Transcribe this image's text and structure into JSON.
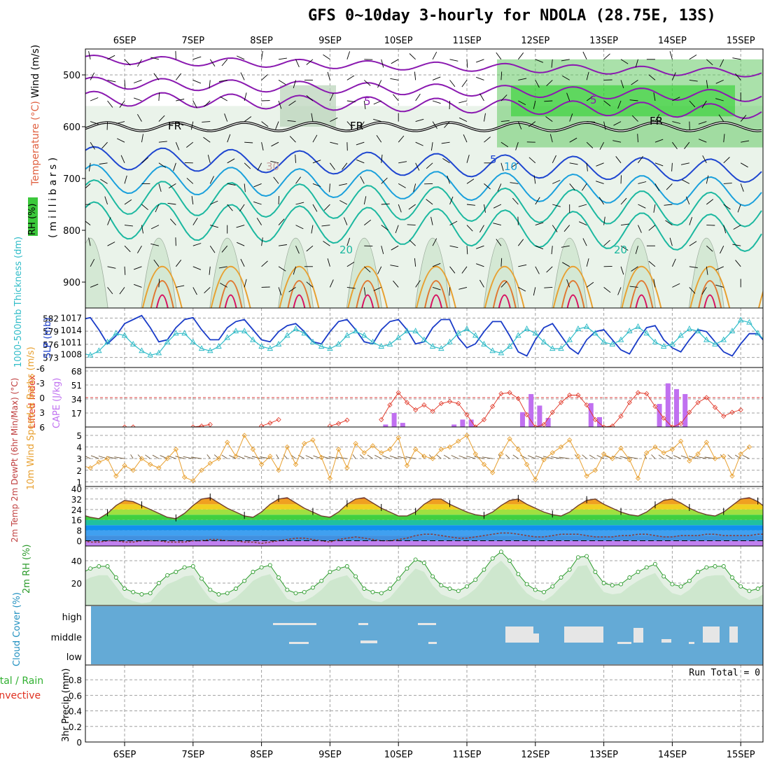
{
  "title": "GFS 0~10day 3-hourly for NDOLA (28.75E, 13S)",
  "x_ticks": [
    "6SEP",
    "7SEP",
    "8SEP",
    "9SEP",
    "10SEP",
    "11SEP",
    "12SEP",
    "13SEP",
    "14SEP",
    "15SEP"
  ],
  "colors": {
    "wind_barb": "#000000",
    "temp_purple": "#8a19b0",
    "temp_blue": "#1e46d0",
    "temp_cyan": "#1aa0dc",
    "temp_teal": "#1cb8a0",
    "temp_orange": "#e8a030",
    "temp_red": "#d81060",
    "rh_light": "#e8f2e8",
    "rh_green": "#3cc83c",
    "slp": "#1a3cc8",
    "thickness": "#30bcc8",
    "cape": "#c070f0",
    "lifted_index": "#e03020",
    "wind_speed": "#e8a030",
    "rh2m": "#2a9a2a",
    "cloud": "#64aad6",
    "cloud_clear": "#e6e6e6"
  },
  "chart_data": [
    {
      "panel": "upper_air",
      "type": "heatmap",
      "ylabel_rh": "RH (%)",
      "ylabel_temp": "Temperature (°C)",
      "ylabel_wind": "Wind (m/s)",
      "ylabel_p": "( m i l l i b a r s )",
      "y_ticks": [
        500,
        600,
        700,
        800,
        900
      ],
      "ylim": [
        950,
        450
      ],
      "contour_labels": [
        "5",
        "FR",
        "FR",
        "FR",
        "5",
        "10",
        "30",
        "20",
        "20",
        "5"
      ],
      "freezing_level_mb": 600
    },
    {
      "panel": "slp_thickness",
      "type": "line",
      "ylabel_left": "1000-500mb Thickness (dm)",
      "ylabel_right": "SLP (mb)",
      "left_ticks": [
        582,
        579,
        576,
        573
      ],
      "right_ticks": [
        1017,
        1014,
        1011,
        1008
      ],
      "series": [
        {
          "name": "SLP (mb)",
          "values": [
            1011.5,
            1015.5,
            1017.5,
            1016.5,
            1017.0,
            1014.0,
            1010.5,
            1012.5,
            1015.5,
            1016.5,
            1017.5,
            1014.5,
            1011.0,
            1011.5,
            1014.5,
            1016.5,
            1017.0,
            1014.0,
            1011.5,
            1011.5,
            1014.5,
            1016.0,
            1016.5,
            1014.0,
            1011.5,
            1011.0,
            1013.5,
            1015.0,
            1015.5,
            1013.5,
            1011.0,
            1010.5,
            1013.5,
            1016.0,
            1016.5,
            1014.0,
            1011.0,
            1010.5,
            1014.0,
            1016.0,
            1016.5,
            1014.0,
            1010.5,
            1011.0,
            1014.5,
            1016.5,
            1016.5,
            1012.0,
            1009.5,
            1010.5,
            1013.5,
            1016.0,
            1016.0,
            1012.5,
            1008.5,
            1007.5,
            1011.5,
            1014.5,
            1015.5,
            1012.5,
            1009.5,
            1008.0,
            1011.5,
            1013.5,
            1014.0,
            1011.5,
            1009.0,
            1008.0,
            1011.5,
            1014.5,
            1015.0,
            1011.5,
            1009.5,
            1008.5,
            1011.5,
            1014.0,
            1013.5,
            1011.0,
            1008.5,
            1007.5,
            1010.5,
            1013.0,
            1013.0,
            1010.5,
            1008.0,
            1007.5,
            1011.0,
            1013.5,
            1012.0,
            1010.5,
            1009.5,
            1011.0,
            1012.5
          ]
        },
        {
          "name": "1000-500mb Thickness (dm)",
          "values": [
            577.5,
            576.5,
            575.0,
            574.0,
            573.5,
            574.5,
            576.5,
            578.5,
            578.0,
            576.0,
            574.5,
            573.5,
            574.0,
            576.5,
            578.5,
            578.5,
            576.5,
            575.0,
            574.5,
            575.5,
            577.5,
            579.0,
            579.0,
            577.0,
            575.5,
            575.0,
            576.0,
            578.0,
            579.5,
            578.5,
            576.5,
            575.5,
            575.0,
            576.0,
            578.0,
            579.0,
            578.0,
            576.5,
            575.5,
            576.0,
            577.5,
            579.0,
            579.0,
            577.0,
            575.5,
            575.0,
            576.5,
            578.5,
            579.5,
            578.0,
            576.0,
            574.5,
            574.0,
            575.5,
            578.0,
            579.5,
            578.5,
            576.5,
            575.0,
            575.0,
            577.0,
            579.5,
            580.0,
            578.5,
            576.5,
            576.0,
            577.0,
            579.0,
            580.0,
            578.5,
            576.5,
            575.5,
            576.0,
            578.0,
            579.5,
            579.0,
            577.0,
            576.0,
            577.0,
            579.0,
            581.5,
            581.0,
            578.5,
            576.5,
            576.5,
            578.5,
            580.5,
            580.5,
            578.0,
            576.0,
            575.0,
            575.0,
            576.0
          ]
        }
      ]
    },
    {
      "panel": "cape_li",
      "type": "bar",
      "ylabel_left": "Lifted Index",
      "ylabel_right": "CAPE (J/kg)",
      "left_ticks": [
        "-6",
        "-3",
        "0",
        "3",
        "6"
      ],
      "right_ticks": [
        68,
        51,
        34,
        17
      ],
      "cape_bars": [
        {
          "t": 38.5,
          "v": 3
        },
        {
          "t": 39.5,
          "v": 17
        },
        {
          "t": 40.5,
          "v": 5
        },
        {
          "t": 46.5,
          "v": 3
        },
        {
          "t": 47.5,
          "v": 9
        },
        {
          "t": 48.5,
          "v": 9
        },
        {
          "t": 54.5,
          "v": 18
        },
        {
          "t": 55.5,
          "v": 40
        },
        {
          "t": 56.5,
          "v": 26
        },
        {
          "t": 57.5,
          "v": 11
        },
        {
          "t": 62.5,
          "v": 29
        },
        {
          "t": 63.5,
          "v": 12
        },
        {
          "t": 70.5,
          "v": 28
        },
        {
          "t": 71.5,
          "v": 53
        },
        {
          "t": 72.5,
          "v": 46
        },
        {
          "t": 73.5,
          "v": 40
        }
      ],
      "lifted_index": [
        null,
        null,
        null,
        null,
        null,
        null,
        null,
        null,
        6.0,
        6.0,
        null,
        null,
        null,
        null,
        null,
        null,
        6.0,
        5.8,
        5.5,
        null,
        null,
        null,
        null,
        null,
        5.8,
        5.2,
        4.5,
        null,
        null,
        null,
        null,
        null,
        5.8,
        5.3,
        4.6,
        null,
        null,
        null,
        4.5,
        1.5,
        -1.0,
        1.0,
        2.5,
        1.5,
        2.8,
        1.2,
        0.8,
        1.2,
        3.5,
        6.0,
        4.5,
        1.8,
        -0.8,
        -1.0,
        0.2,
        3.5,
        6.0,
        5.5,
        3.0,
        1.0,
        -0.5,
        -0.5,
        1.5,
        4.5,
        6.0,
        5.8,
        3.8,
        1.0,
        -1.0,
        -0.8,
        1.8,
        4.2,
        6.0,
        5.3,
        3.0,
        1.0,
        0.0,
        2.0,
        3.8,
        3.0,
        2.5
      ]
    },
    {
      "panel": "wind10m",
      "type": "line",
      "ylabel": "10m Wind Speed & Barbs (m/s)",
      "y_ticks": [
        5,
        4,
        3,
        2,
        1
      ],
      "ylim": [
        0.6,
        5.6
      ],
      "series": [
        {
          "name": "Speed",
          "values": [
            3.1,
            2.6,
            2.4,
            2.4,
            2.2,
            2.7,
            3.0,
            1.5,
            2.4,
            2.0,
            3.0,
            2.5,
            2.2,
            3.0,
            3.8,
            1.4,
            1.1,
            2.0,
            2.6,
            3.0,
            4.4,
            3.2,
            5.0,
            3.8,
            2.5,
            3.2,
            2.0,
            4.0,
            2.5,
            4.3,
            4.6,
            3.1,
            1.3,
            3.8,
            2.2,
            4.3,
            3.5,
            4.1,
            3.5,
            3.8,
            4.8,
            2.4,
            3.8,
            3.2,
            3.0,
            3.8,
            4.0,
            4.5,
            5.0,
            3.4,
            2.5,
            1.8,
            3.4,
            4.7,
            3.8,
            2.5,
            1.2,
            2.9,
            3.5,
            4.0,
            4.6,
            3.2,
            1.5,
            2.0,
            3.4,
            3.0,
            3.9,
            2.9,
            1.3,
            3.5,
            4.0,
            3.5,
            3.8,
            4.5,
            2.8,
            3.4,
            4.4,
            3.0,
            3.2,
            1.5,
            3.4,
            4.0
          ]
        }
      ]
    },
    {
      "panel": "temp2m",
      "type": "area",
      "ylabel": "2m Temp 2m DewPt (6hr Min/Max) (°C)",
      "y_ticks": [
        40,
        32,
        24,
        16,
        8,
        0
      ],
      "ylim": [
        -4,
        40
      ],
      "series": [
        {
          "name": "2m Temp",
          "values": [
            28,
            27,
            24,
            20,
            18,
            17,
            21,
            27,
            31,
            30,
            27,
            24,
            21,
            18,
            17,
            21,
            27,
            32,
            33,
            29,
            25,
            22,
            19,
            18,
            22,
            28,
            32,
            33,
            29,
            25,
            22,
            19,
            18,
            22,
            28,
            32,
            33,
            29,
            25,
            22,
            19,
            19,
            22,
            28,
            32,
            32,
            28,
            25,
            22,
            20,
            19,
            22,
            27,
            31,
            32,
            28,
            25,
            22,
            20,
            19,
            22,
            27,
            31,
            32,
            28,
            25,
            22,
            20,
            19,
            22,
            27,
            31,
            32,
            29,
            25,
            22,
            20,
            19,
            22,
            27,
            32,
            33,
            30,
            25,
            22,
            21,
            20,
            23,
            27,
            32,
            33,
            30,
            26
          ]
        },
        {
          "name": "2m DewPt",
          "values": [
            -2,
            -1,
            -1,
            0,
            -1,
            -1,
            0,
            0,
            -1,
            -1,
            0,
            0,
            0,
            -1,
            -1,
            -1,
            0,
            0,
            1,
            1,
            0,
            0,
            -1,
            -1,
            -2,
            -1,
            0,
            1,
            2,
            2,
            1,
            0,
            -1,
            1,
            2,
            3,
            2,
            1,
            0,
            0,
            1,
            2,
            4,
            5,
            5,
            4,
            3,
            2,
            2,
            3,
            4,
            5,
            6,
            6,
            5,
            4,
            3,
            3,
            4,
            5,
            5,
            5,
            4,
            3,
            3,
            3,
            4,
            4,
            5,
            5,
            4,
            3,
            3,
            4,
            4,
            4,
            5,
            5,
            4,
            4,
            4,
            4,
            5,
            5,
            5,
            5,
            5,
            5,
            6,
            5,
            5,
            5,
            6
          ]
        }
      ]
    },
    {
      "panel": "rh2m",
      "type": "area",
      "ylabel": "2m RH (%)",
      "y_ticks": [
        40,
        20
      ],
      "ylim": [
        0,
        50
      ],
      "series": [
        {
          "name": "2m RH",
          "values": [
            13,
            14,
            22,
            29,
            33,
            35,
            35,
            25,
            15,
            12,
            10,
            11,
            20,
            27,
            30,
            34,
            35,
            24,
            14,
            10,
            11,
            15,
            22,
            30,
            34,
            36,
            25,
            14,
            11,
            12,
            16,
            22,
            30,
            33,
            35,
            26,
            15,
            12,
            11,
            15,
            24,
            33,
            41,
            38,
            26,
            18,
            15,
            13,
            17,
            23,
            32,
            42,
            48,
            40,
            28,
            19,
            14,
            12,
            17,
            25,
            32,
            43,
            44,
            30,
            20,
            18,
            19,
            25,
            30,
            34,
            37,
            26,
            19,
            17,
            22,
            30,
            34,
            35,
            35,
            25,
            17,
            13,
            15,
            20,
            30,
            36,
            35,
            26
          ]
        }
      ]
    },
    {
      "panel": "cloud_cover",
      "type": "bar",
      "ylabel": "Cloud Cover (%)",
      "levels": [
        "high",
        "middle",
        "low"
      ]
    },
    {
      "panel": "precip",
      "type": "bar",
      "ylabel_left": "Total / Rain",
      "ylabel_left2": "Convective",
      "ylabel": "3hr Precip (mm)",
      "y_ticks": [
        "0.8",
        "0.6",
        "0.4",
        "0.2",
        "0"
      ],
      "ylim": [
        0,
        0.9
      ],
      "run_total": "Run Total = 0",
      "values": []
    }
  ]
}
